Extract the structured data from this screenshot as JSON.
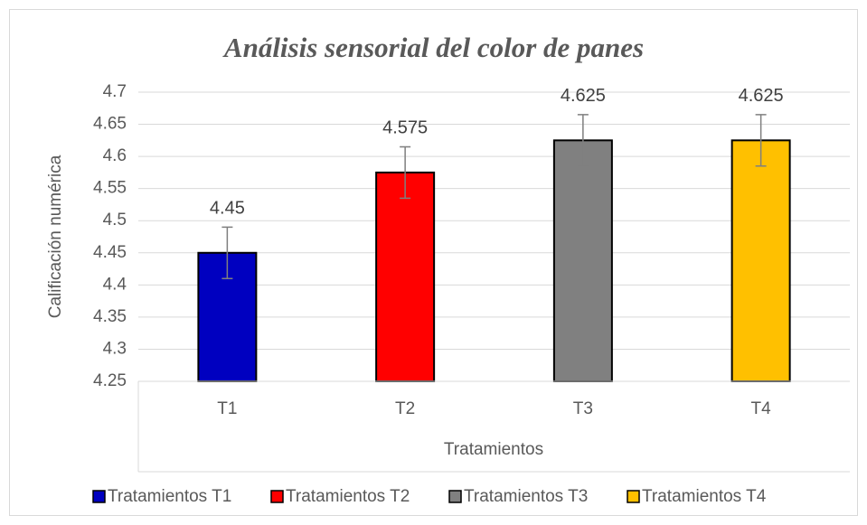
{
  "chart_data": {
    "type": "bar",
    "title": "Análisis sensorial del color de panes",
    "ylabel": "Calificación numérica",
    "xlabel": "Tratamientos",
    "categories": [
      "T1",
      "T2",
      "T3",
      "T4"
    ],
    "series": [
      {
        "name": "Tratamientos T1",
        "color": "#0000c0",
        "values": [
          4.45,
          null,
          null,
          null
        ],
        "errors": [
          0.04,
          null,
          null,
          null
        ]
      },
      {
        "name": "Tratamientos T2",
        "color": "#ff0000",
        "values": [
          null,
          4.575,
          null,
          null
        ],
        "errors": [
          null,
          0.04,
          null,
          null
        ]
      },
      {
        "name": "Tratamientos T3",
        "color": "#808080",
        "values": [
          null,
          null,
          4.625,
          null
        ],
        "errors": [
          null,
          null,
          0.04,
          null
        ]
      },
      {
        "name": "Tratamientos T4",
        "color": "#ffc000",
        "values": [
          null,
          null,
          null,
          4.625
        ],
        "errors": [
          null,
          null,
          null,
          0.04
        ]
      }
    ],
    "ylim": [
      4.25,
      4.7
    ],
    "yticks": [
      4.25,
      4.3,
      4.35,
      4.4,
      4.45,
      4.5,
      4.55,
      4.6,
      4.65,
      4.7
    ],
    "grid": true,
    "legend": "bottom"
  }
}
